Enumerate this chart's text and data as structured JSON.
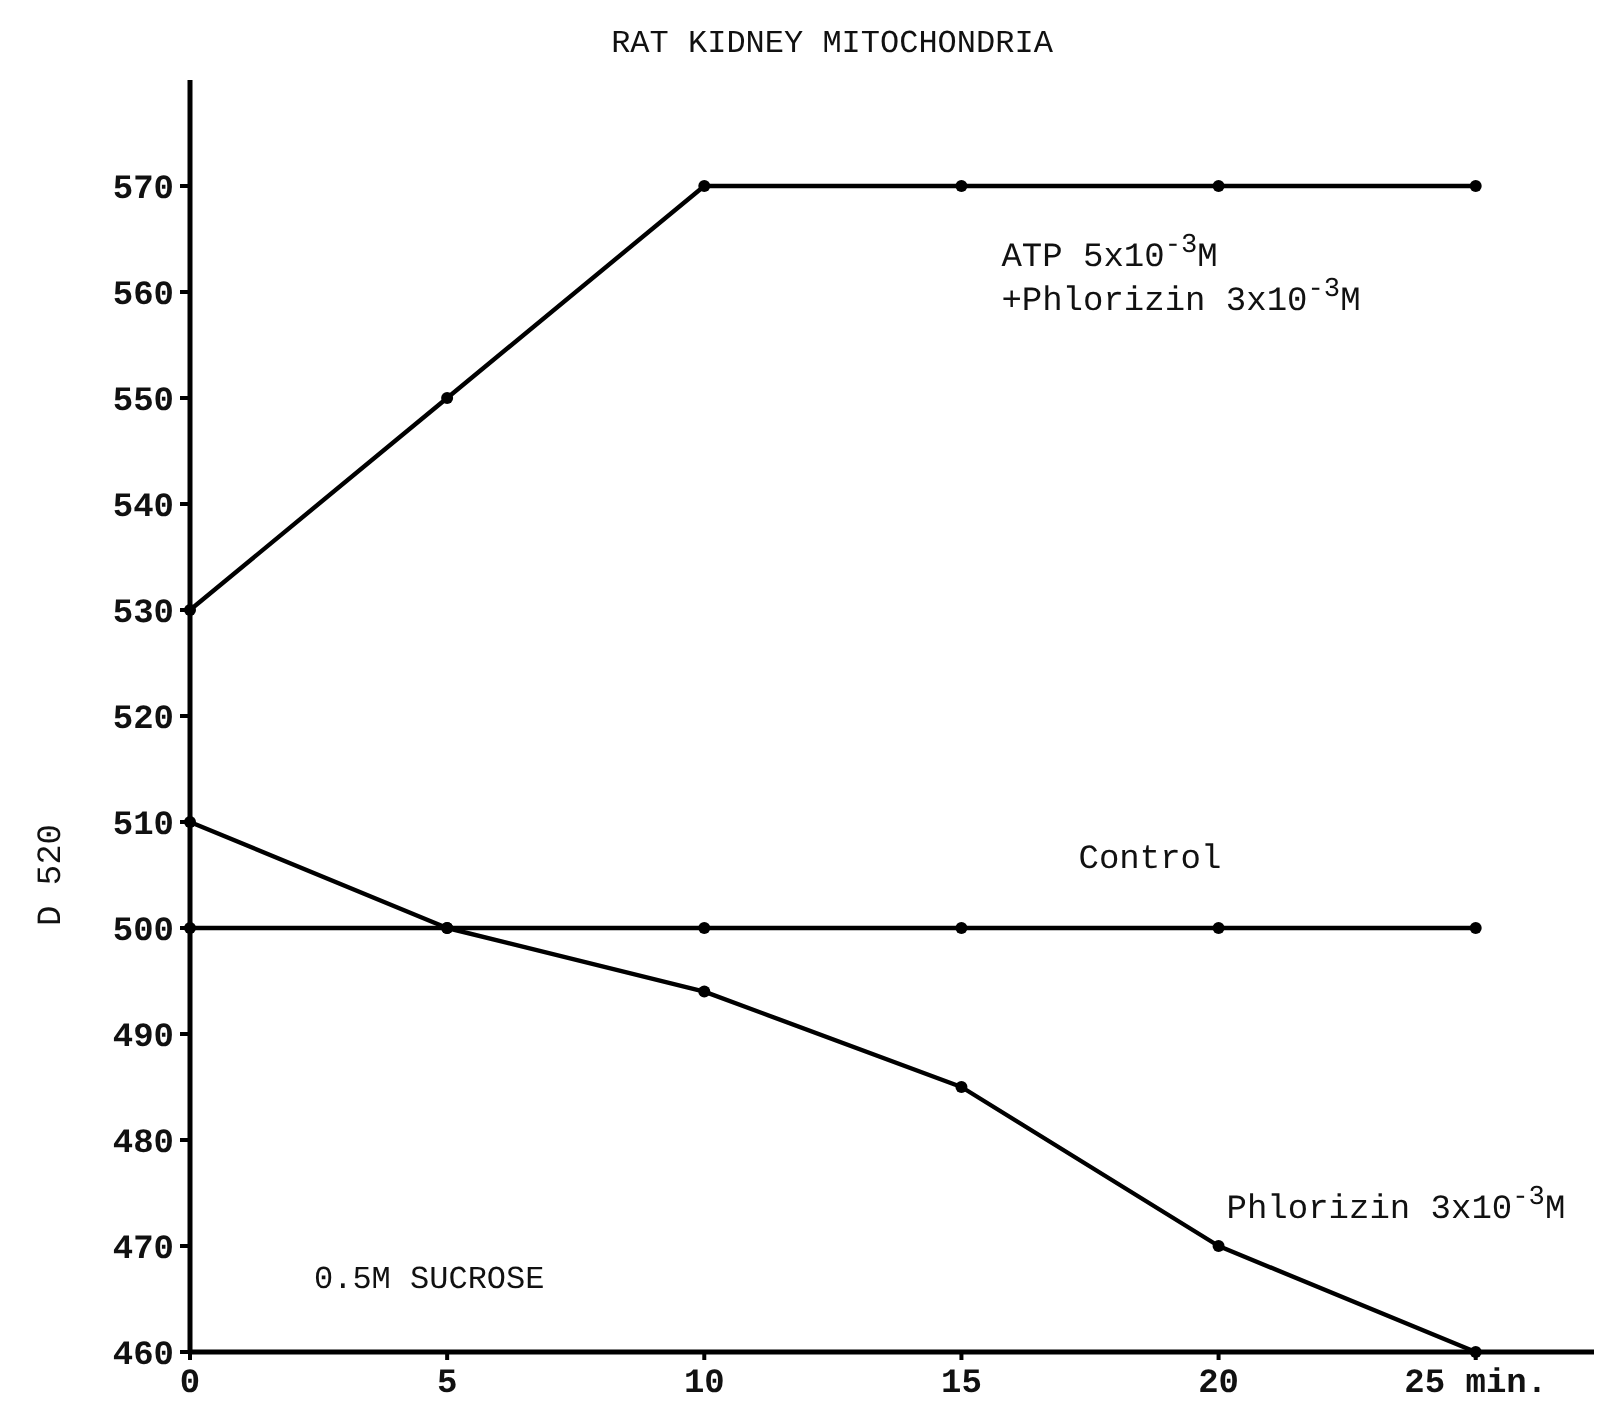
{
  "chart_data": {
    "type": "line",
    "title": "RAT KIDNEY MITOCHONDRIA",
    "ylabel": "D 520",
    "x": [
      0,
      5,
      10,
      15,
      20,
      25
    ],
    "series": [
      {
        "name": "ATP 5x10$^{-3}$M\n+Phlorizin 3x10$^{-3}$M",
        "color": "#000000",
        "values": [
          530,
          550,
          570,
          570,
          570,
          570
        ]
      },
      {
        "name": "Control",
        "color": "#000000",
        "values": [
          500,
          500,
          500,
          500,
          500,
          500
        ]
      },
      {
        "name": "Phlorizin 3x10$^{-3}$M",
        "color": "#000000",
        "values": [
          510,
          500,
          494,
          485,
          470,
          460
        ]
      }
    ],
    "xlim": [
      0,
      27.3
    ],
    "xticks": [
      0,
      5,
      10,
      15,
      20,
      {
        "value": 25,
        "label": "25 min."
      }
    ],
    "ylim": [
      460,
      580
    ],
    "yticks": [
      460,
      470,
      480,
      490,
      500,
      510,
      520,
      530,
      540,
      550,
      560,
      570
    ],
    "annotations": [
      "0.5M SUCROSE"
    ],
    "grid": false,
    "marker": "circle",
    "line_style": "solid"
  }
}
